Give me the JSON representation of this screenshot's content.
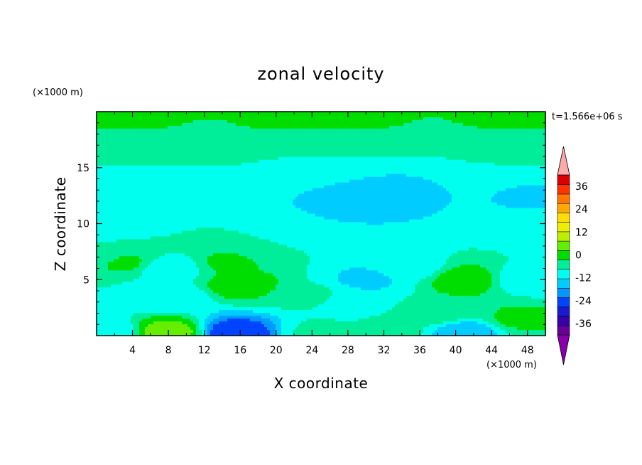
{
  "chart_data": {
    "type": "heatmap",
    "title": "zonal velocity",
    "xlabel": "X coordinate",
    "ylabel": "Z coordinate",
    "x_unit": "(×1000 m)",
    "y_unit": "(×1000 m)",
    "time_label": "t=1.566e+06 s",
    "xlim": [
      0,
      50
    ],
    "ylim": [
      0,
      20
    ],
    "x_ticks": [
      "4",
      "8",
      "12",
      "16",
      "20",
      "24",
      "28",
      "32",
      "36",
      "40",
      "44",
      "48"
    ],
    "y_ticks": [
      "5",
      "10",
      "15"
    ],
    "x_tick_values": [
      4,
      8,
      12,
      16,
      20,
      24,
      28,
      32,
      36,
      40,
      44,
      48
    ],
    "y_tick_values": [
      5,
      10,
      15
    ],
    "colorbar": {
      "ticks": [
        "36",
        "24",
        "12",
        "0",
        "-12",
        "-24",
        "-36"
      ],
      "tick_values": [
        36,
        24,
        12,
        0,
        -12,
        -24,
        -36
      ],
      "min": -42,
      "max": 42,
      "step": 6,
      "colors": [
        "#660099",
        "#3300aa",
        "#1a1acc",
        "#0044ff",
        "#0099ff",
        "#00ccff",
        "#00ffee",
        "#00ee99",
        "#00dd00",
        "#66ee00",
        "#bbee00",
        "#eeee00",
        "#ffdd00",
        "#ffaa00",
        "#ff7700",
        "#ff3300",
        "#dd0000"
      ],
      "over_color": "#ffaaaa",
      "under_color": "#8800aa"
    },
    "features": [
      {
        "x": 0,
        "z": 19.5,
        "u": 10
      },
      {
        "x": 25,
        "z": 19.5,
        "u": 10
      },
      {
        "x": 50,
        "z": 19.5,
        "u": 10
      },
      {
        "x": 0,
        "z": 17.5,
        "u": 3
      },
      {
        "x": 25,
        "z": 17.5,
        "u": 3
      },
      {
        "x": 50,
        "z": 17.5,
        "u": 3
      },
      {
        "x": 0,
        "z": 15,
        "u": 0
      },
      {
        "x": 25,
        "z": 15,
        "u": -1
      },
      {
        "x": 50,
        "z": 15,
        "u": 0
      },
      {
        "x": 0,
        "z": 12.5,
        "u": -6
      },
      {
        "x": 30,
        "z": 12.5,
        "u": -10
      },
      {
        "x": 50,
        "z": 12.5,
        "u": -7
      },
      {
        "x": 0,
        "z": 10,
        "u": -5
      },
      {
        "x": 25,
        "z": 10,
        "u": -6
      },
      {
        "x": 50,
        "z": 10,
        "u": -5
      },
      {
        "x": 0,
        "z": 7,
        "u": 2
      },
      {
        "x": 20,
        "z": 7.5,
        "u": 0
      },
      {
        "x": 50,
        "z": 7.5,
        "u": 0
      },
      {
        "x": 3,
        "z": 6.5,
        "u": 7
      },
      {
        "x": 16,
        "z": 4.5,
        "u": 9
      },
      {
        "x": 15,
        "z": 6.5,
        "u": 7
      },
      {
        "x": 8,
        "z": 3.5,
        "u": -6
      },
      {
        "x": 8,
        "z": 6,
        "u": -4
      },
      {
        "x": 24,
        "z": 3.5,
        "u": 2
      },
      {
        "x": 30,
        "z": 5,
        "u": -7
      },
      {
        "x": 28,
        "z": 3,
        "u": -4
      },
      {
        "x": 35,
        "z": 6,
        "u": -3
      },
      {
        "x": 41,
        "z": 5,
        "u": 10
      },
      {
        "x": 48,
        "z": 5,
        "u": -4
      },
      {
        "x": 38,
        "z": 2,
        "u": 4
      },
      {
        "x": 47,
        "z": 1.5,
        "u": 7
      },
      {
        "x": 8,
        "z": 0.3,
        "u": 15
      },
      {
        "x": 15.5,
        "z": 0.3,
        "u": -22
      },
      {
        "x": 41,
        "z": 0.3,
        "u": -10
      },
      {
        "x": 25,
        "z": 0.3,
        "u": 1
      },
      {
        "x": 1,
        "z": 0.3,
        "u": -6
      },
      {
        "x": 33,
        "z": 0.5,
        "u": 2
      }
    ]
  }
}
